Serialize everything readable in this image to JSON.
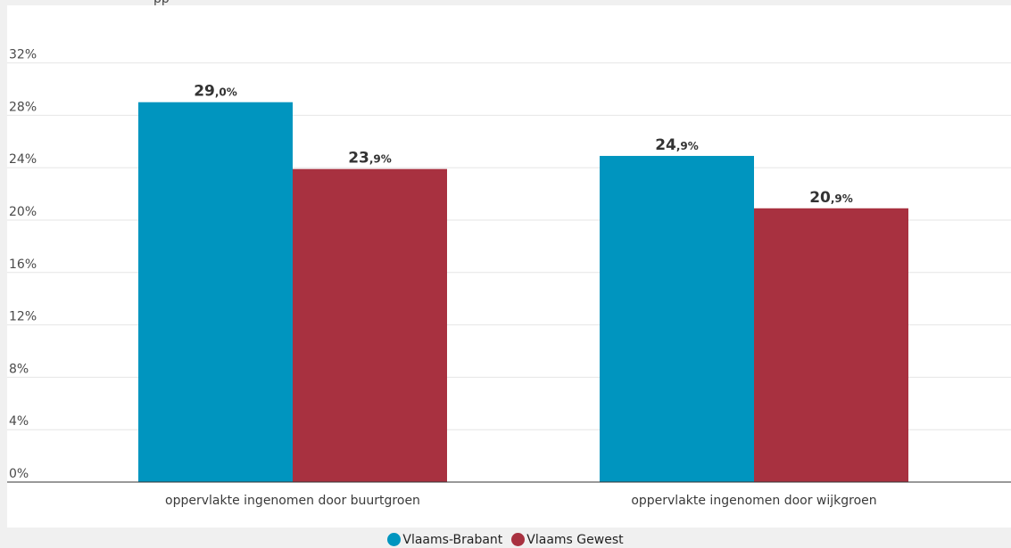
{
  "header": {
    "clipped_text": "pp"
  },
  "chart_data": {
    "type": "bar",
    "title": "",
    "xlabel": "",
    "ylabel": "",
    "categories": [
      "oppervlakte ingenomen door buurtgroen",
      "oppervlakte ingenomen door wijkgroen"
    ],
    "series": [
      {
        "name": "Vlaams-Brabant",
        "color": "#0095bf",
        "values": [
          29.0,
          24.9
        ]
      },
      {
        "name": "Vlaams Gewest",
        "color": "#a83140",
        "values": [
          23.9,
          20.9
        ]
      }
    ],
    "data_labels": [
      [
        "29,0%",
        "24,9%"
      ],
      [
        "23,9%",
        "20,9%"
      ]
    ],
    "yticks": [
      0,
      4,
      8,
      12,
      16,
      20,
      24,
      28,
      32
    ],
    "ytick_labels": [
      "0%",
      "4%",
      "8%",
      "12%",
      "16%",
      "20%",
      "24%",
      "28%",
      "32%"
    ],
    "ylim": [
      0,
      36
    ],
    "grid": true,
    "legend_position": "bottom-center"
  }
}
